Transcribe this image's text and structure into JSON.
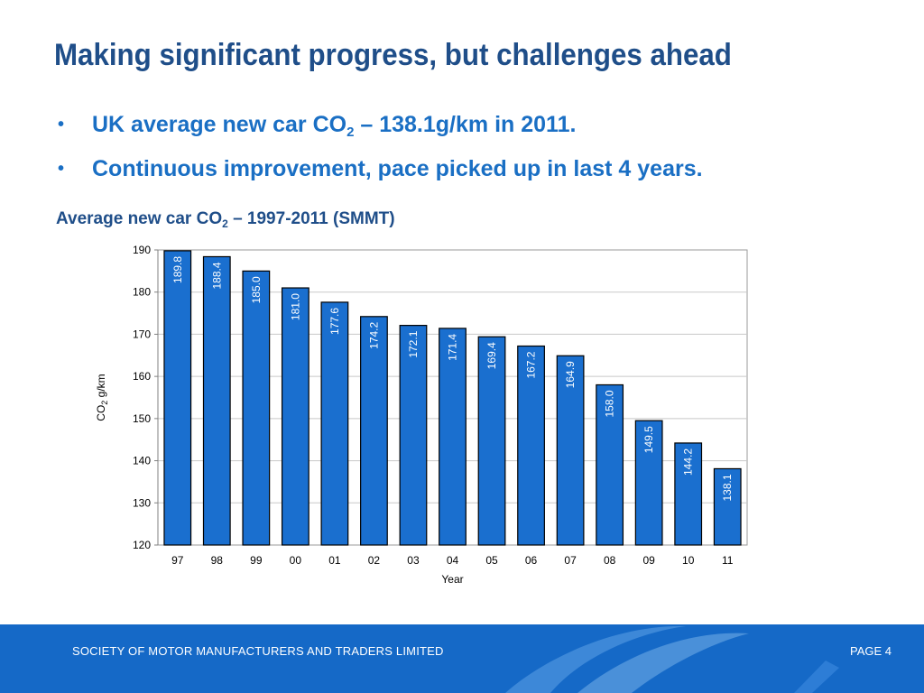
{
  "slide": {
    "title": "Making significant progress, but challenges ahead",
    "bullets": [
      {
        "text_before": "UK average new car CO",
        "sub": "2",
        "text_after": " – 138.1g/km in 2011."
      },
      {
        "text_before": "Continuous improvement, pace picked up in last 4 years.",
        "sub": "",
        "text_after": ""
      }
    ],
    "bullet_glyph": "•",
    "chart_heading": {
      "before": "Average new car CO",
      "sub": "2",
      "after": " – 1997-2011 (SMMT)"
    }
  },
  "footer": {
    "company": "SOCIETY OF MOTOR MANUFACTURERS AND TRADERS LIMITED",
    "page": "PAGE 4"
  },
  "colors": {
    "title": "#1f4e89",
    "bullets": "#1a6fc4",
    "bar_fill": "#1a6fcf",
    "bar_stroke": "#000000",
    "footer_bg": "#1569c7"
  },
  "chart_data": {
    "type": "bar",
    "title": "",
    "categories": [
      "97",
      "98",
      "99",
      "00",
      "01",
      "02",
      "03",
      "04",
      "05",
      "06",
      "07",
      "08",
      "09",
      "10",
      "11"
    ],
    "values": [
      189.8,
      188.4,
      185.0,
      181.0,
      177.6,
      174.2,
      172.1,
      171.4,
      169.4,
      167.2,
      164.9,
      158.0,
      149.5,
      144.2,
      138.1
    ],
    "value_labels": [
      "189.8",
      "188.4",
      "185.0",
      "181.0",
      "177.6",
      "174.2",
      "172.1",
      "171.4",
      "169.4",
      "167.2",
      "164.9",
      "158.0",
      "149.5",
      "144.2",
      "138.1"
    ],
    "xlabel": "Year",
    "ylabel": {
      "before": "CO",
      "sub": "2",
      "after": " g/km"
    },
    "ylim": [
      120,
      190
    ],
    "yticks": [
      120,
      130,
      140,
      150,
      160,
      170,
      180,
      190
    ],
    "grid": true,
    "legend": "none"
  }
}
